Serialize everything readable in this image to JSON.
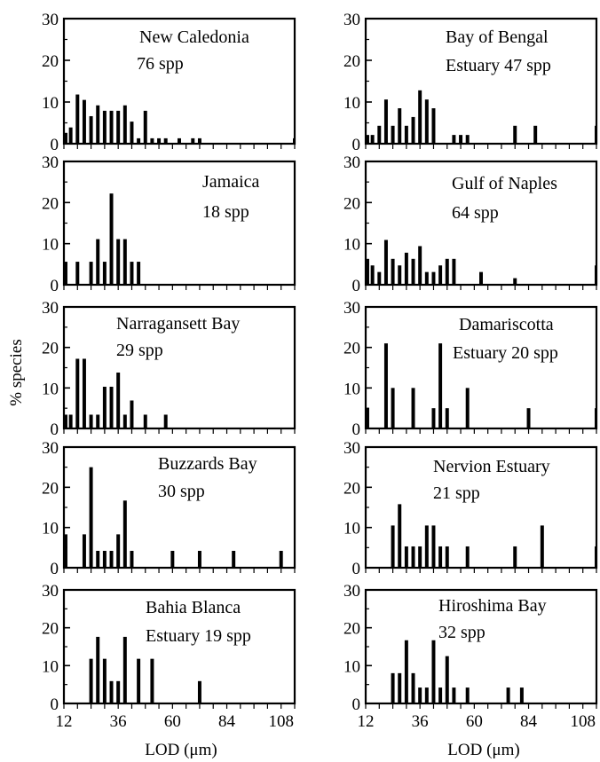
{
  "figure": {
    "ylabel": "% species",
    "xlabel_left": "LOD (μm)",
    "xlabel_right": "LOD (μm)"
  },
  "chart_data": [
    {
      "type": "bar",
      "label": [
        "New Caledonia",
        "76 spp"
      ],
      "xlim": [
        12,
        114
      ],
      "ylim": [
        0,
        30
      ],
      "xticks": [
        12,
        36,
        60,
        84,
        108
      ],
      "yticks": [
        0,
        10,
        20,
        30
      ],
      "x": [
        12,
        15,
        18,
        21,
        24,
        27,
        30,
        33,
        36,
        39,
        42,
        45,
        48,
        51,
        54,
        57,
        60,
        63,
        66,
        69,
        72,
        75,
        78,
        81,
        84,
        87,
        90,
        93,
        96,
        99,
        102,
        105,
        108,
        111,
        114
      ],
      "values": [
        2.6,
        3.9,
        11.8,
        10.5,
        6.6,
        9.2,
        7.9,
        7.9,
        7.9,
        9.2,
        5.3,
        1.3,
        7.9,
        1.3,
        1.3,
        1.3,
        0,
        1.3,
        0,
        1.3,
        1.3,
        0,
        0,
        0,
        0,
        0,
        0,
        0,
        0,
        0,
        0,
        0,
        0,
        0,
        1.3
      ]
    },
    {
      "type": "bar",
      "label": [
        "Bay of Bengal",
        "Estuary 47 spp"
      ],
      "xlim": [
        12,
        114
      ],
      "ylim": [
        0,
        30
      ],
      "xticks": [
        12,
        36,
        60,
        84,
        108
      ],
      "yticks": [
        0,
        10,
        20,
        30
      ],
      "x": [
        12,
        15,
        18,
        21,
        24,
        27,
        30,
        33,
        36,
        39,
        42,
        45,
        48,
        51,
        54,
        57,
        60,
        63,
        66,
        69,
        72,
        75,
        78,
        81,
        84,
        87,
        90,
        93,
        96,
        99,
        102,
        105,
        108,
        111,
        114
      ],
      "values": [
        2.1,
        2.1,
        4.3,
        10.6,
        4.3,
        8.5,
        4.3,
        6.4,
        12.8,
        10.6,
        8.5,
        0,
        0,
        2.1,
        2.1,
        2.1,
        0,
        0,
        0,
        0,
        0,
        0,
        4.3,
        0,
        0,
        4.3,
        0,
        0,
        0,
        0,
        0,
        0,
        0,
        0,
        4.3
      ]
    },
    {
      "type": "bar",
      "label": [
        "Jamaica",
        "18 spp"
      ],
      "xlim": [
        12,
        114
      ],
      "ylim": [
        0,
        30
      ],
      "xticks": [
        12,
        36,
        60,
        84,
        108
      ],
      "yticks": [
        0,
        10,
        20,
        30
      ],
      "x": [
        12,
        15,
        18,
        21,
        24,
        27,
        30,
        33,
        36,
        39,
        42,
        45,
        48,
        51,
        54,
        57,
        60,
        63,
        66,
        69,
        72,
        75,
        78,
        81,
        84,
        87,
        90,
        93,
        96,
        99,
        102,
        105,
        108,
        111,
        114
      ],
      "values": [
        5.6,
        0,
        5.6,
        0,
        5.6,
        11.1,
        5.6,
        22.2,
        11.1,
        11.1,
        5.6,
        5.6,
        0,
        0,
        0,
        0,
        0,
        0,
        0,
        0,
        0,
        0,
        0,
        0,
        0,
        0,
        0,
        0,
        0,
        0,
        0,
        0,
        0,
        0,
        0
      ]
    },
    {
      "type": "bar",
      "label": [
        "Gulf of Naples",
        "64 spp"
      ],
      "xlim": [
        12,
        114
      ],
      "ylim": [
        0,
        30
      ],
      "xticks": [
        12,
        36,
        60,
        84,
        108
      ],
      "yticks": [
        0,
        10,
        20,
        30
      ],
      "x": [
        12,
        15,
        18,
        21,
        24,
        27,
        30,
        33,
        36,
        39,
        42,
        45,
        48,
        51,
        54,
        57,
        60,
        63,
        66,
        69,
        72,
        75,
        78,
        81,
        84,
        87,
        90,
        93,
        96,
        99,
        102,
        105,
        108,
        111,
        114
      ],
      "values": [
        6.3,
        4.7,
        3.1,
        10.9,
        6.3,
        4.7,
        7.8,
        6.3,
        9.4,
        3.1,
        3.1,
        4.7,
        6.3,
        6.3,
        0,
        0,
        0,
        3.1,
        0,
        0,
        0,
        0,
        1.6,
        0,
        0,
        0,
        0,
        0,
        0,
        0,
        0,
        0,
        0,
        0,
        4.7
      ]
    },
    {
      "type": "bar",
      "label": [
        "Narragansett Bay",
        "29 spp"
      ],
      "xlim": [
        12,
        114
      ],
      "ylim": [
        0,
        30
      ],
      "xticks": [
        12,
        36,
        60,
        84,
        108
      ],
      "yticks": [
        0,
        10,
        20,
        30
      ],
      "x": [
        12,
        15,
        18,
        21,
        24,
        27,
        30,
        33,
        36,
        39,
        42,
        45,
        48,
        51,
        54,
        57,
        60,
        63,
        66,
        69,
        72,
        75,
        78,
        81,
        84,
        87,
        90,
        93,
        96,
        99,
        102,
        105,
        108,
        111,
        114
      ],
      "values": [
        3.4,
        3.4,
        17.2,
        17.2,
        3.4,
        3.4,
        10.3,
        10.3,
        13.8,
        3.4,
        6.9,
        0,
        3.4,
        0,
        0,
        3.4,
        0,
        0,
        0,
        0,
        0,
        0,
        0,
        0,
        0,
        0,
        0,
        0,
        0,
        0,
        0,
        0,
        0,
        0,
        0
      ]
    },
    {
      "type": "bar",
      "label": [
        "Damariscotta",
        "Estuary 20 spp"
      ],
      "xlim": [
        12,
        114
      ],
      "ylim": [
        0,
        30
      ],
      "xticks": [
        12,
        36,
        60,
        84,
        108
      ],
      "yticks": [
        0,
        10,
        20,
        30
      ],
      "x": [
        12,
        15,
        18,
        21,
        24,
        27,
        30,
        33,
        36,
        39,
        42,
        45,
        48,
        51,
        54,
        57,
        60,
        63,
        66,
        69,
        72,
        75,
        78,
        81,
        84,
        87,
        90,
        93,
        96,
        99,
        102,
        105,
        108,
        111,
        114
      ],
      "values": [
        5,
        0,
        0,
        21,
        10,
        0,
        0,
        10,
        0,
        0,
        5,
        21,
        5,
        0,
        0,
        10,
        0,
        0,
        0,
        0,
        0,
        0,
        0,
        0,
        5,
        0,
        0,
        0,
        0,
        0,
        0,
        0,
        0,
        0,
        5
      ]
    },
    {
      "type": "bar",
      "label": [
        "Buzzards Bay",
        "30 spp"
      ],
      "xlim": [
        12,
        114
      ],
      "ylim": [
        0,
        30
      ],
      "xticks": [
        12,
        36,
        60,
        84,
        108
      ],
      "yticks": [
        0,
        10,
        20,
        30
      ],
      "x": [
        12,
        15,
        18,
        21,
        24,
        27,
        30,
        33,
        36,
        39,
        42,
        45,
        48,
        51,
        54,
        57,
        60,
        63,
        66,
        69,
        72,
        75,
        78,
        81,
        84,
        87,
        90,
        93,
        96,
        99,
        102,
        105,
        108,
        111,
        114
      ],
      "values": [
        8.3,
        0,
        0,
        8.3,
        25,
        4.2,
        4.2,
        4.2,
        8.3,
        16.7,
        4.2,
        0,
        0,
        0,
        0,
        0,
        4.2,
        0,
        0,
        0,
        4.2,
        0,
        0,
        0,
        0,
        4.2,
        0,
        0,
        0,
        0,
        0,
        0,
        4.2,
        0,
        0
      ]
    },
    {
      "type": "bar",
      "label": [
        "Nervion Estuary",
        "21 spp"
      ],
      "xlim": [
        12,
        114
      ],
      "ylim": [
        0,
        30
      ],
      "xticks": [
        12,
        36,
        60,
        84,
        108
      ],
      "yticks": [
        0,
        10,
        20,
        30
      ],
      "x": [
        12,
        15,
        18,
        21,
        24,
        27,
        30,
        33,
        36,
        39,
        42,
        45,
        48,
        51,
        54,
        57,
        60,
        63,
        66,
        69,
        72,
        75,
        78,
        81,
        84,
        87,
        90,
        93,
        96,
        99,
        102,
        105,
        108,
        111,
        114
      ],
      "values": [
        0,
        0,
        0,
        0,
        10.5,
        15.8,
        5.3,
        5.3,
        5.3,
        10.5,
        10.5,
        5.3,
        5.3,
        0,
        0,
        5.3,
        0,
        0,
        0,
        0,
        0,
        0,
        5.3,
        0,
        0,
        0,
        10.5,
        0,
        0,
        0,
        0,
        0,
        0,
        0,
        5.3
      ]
    },
    {
      "type": "bar",
      "label": [
        "Bahia Blanca",
        "Estuary 19 spp"
      ],
      "xlim": [
        12,
        114
      ],
      "ylim": [
        0,
        30
      ],
      "xticks": [
        12,
        36,
        60,
        84,
        108
      ],
      "yticks": [
        0,
        10,
        20,
        30
      ],
      "x": [
        12,
        15,
        18,
        21,
        24,
        27,
        30,
        33,
        36,
        39,
        42,
        45,
        48,
        51,
        54,
        57,
        60,
        63,
        66,
        69,
        72,
        75,
        78,
        81,
        84,
        87,
        90,
        93,
        96,
        99,
        102,
        105,
        108,
        111,
        114
      ],
      "values": [
        0,
        0,
        0,
        0,
        11.8,
        17.6,
        11.8,
        5.9,
        5.9,
        17.6,
        0,
        11.8,
        0,
        11.8,
        0,
        0,
        0,
        0,
        0,
        0,
        5.9,
        0,
        0,
        0,
        0,
        0,
        0,
        0,
        0,
        0,
        0,
        0,
        0,
        0,
        0
      ]
    },
    {
      "type": "bar",
      "label": [
        "Hiroshima Bay",
        "32 spp"
      ],
      "xlim": [
        12,
        114
      ],
      "ylim": [
        0,
        30
      ],
      "xticks": [
        12,
        36,
        60,
        84,
        108
      ],
      "yticks": [
        0,
        10,
        20,
        30
      ],
      "x": [
        12,
        15,
        18,
        21,
        24,
        27,
        30,
        33,
        36,
        39,
        42,
        45,
        48,
        51,
        54,
        57,
        60,
        63,
        66,
        69,
        72,
        75,
        78,
        81,
        84,
        87,
        90,
        93,
        96,
        99,
        102,
        105,
        108,
        111,
        114
      ],
      "values": [
        0,
        0,
        0,
        0,
        8,
        8,
        16.7,
        8,
        4.2,
        4.2,
        16.7,
        4.2,
        12.5,
        4.2,
        0,
        4.2,
        0,
        0,
        0,
        0,
        0,
        4.2,
        0,
        4.2,
        0,
        0,
        0,
        0,
        0,
        0,
        0,
        0,
        0,
        0,
        0
      ]
    }
  ]
}
